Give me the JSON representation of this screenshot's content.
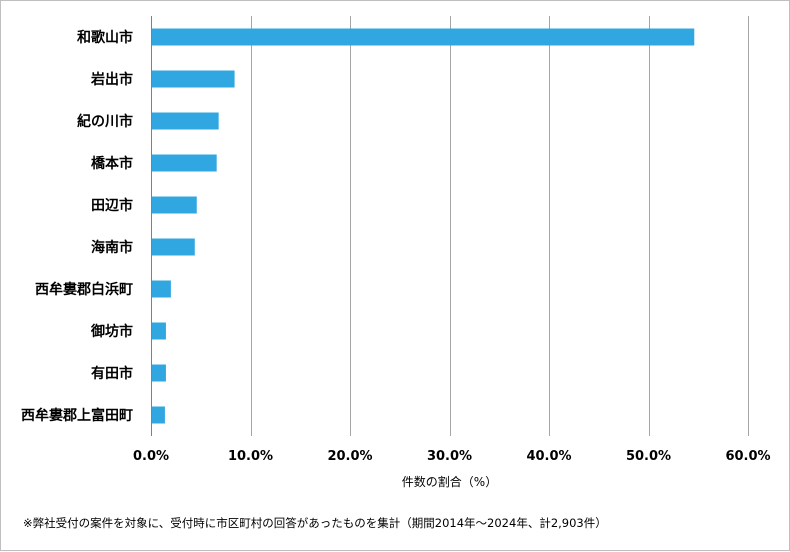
{
  "chart_data": {
    "type": "bar",
    "orientation": "horizontal",
    "categories": [
      "和歌山市",
      "岩出市",
      "紀の川市",
      "橋本市",
      "田辺市",
      "海南市",
      "西牟婁郡白浜町",
      "御坊市",
      "有田市",
      "西牟婁郡上富田町"
    ],
    "values": [
      54.6,
      8.4,
      6.8,
      6.6,
      4.6,
      4.4,
      2.0,
      1.5,
      1.5,
      1.4
    ],
    "title": "",
    "xlabel": "件数の割合（%）",
    "ylabel": "",
    "xlim": [
      0,
      60
    ],
    "xticks": [
      0,
      10,
      20,
      30,
      40,
      50,
      60
    ],
    "xtick_labels": [
      "0.0%",
      "10.0%",
      "20.0%",
      "30.0%",
      "40.0%",
      "50.0%",
      "60.0%"
    ],
    "grid": "vertical",
    "legend": "none",
    "bar_color": "#30a7e0",
    "grid_color": "#a6a6a6"
  },
  "footnote": "※弊社受付の案件を対象に、受付時に市区町村の回答があったものを集計（期間2014年～2024年、計2,903件）"
}
